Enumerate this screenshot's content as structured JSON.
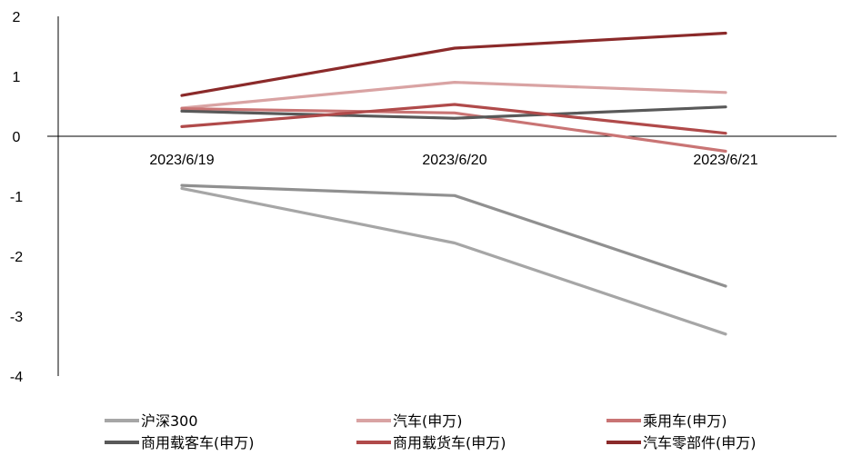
{
  "chart_data": {
    "type": "line",
    "categories": [
      "2023/6/19",
      "2023/6/20",
      "2023/6/21"
    ],
    "ylim": [
      -4,
      2
    ],
    "yticks": [
      2,
      1,
      0,
      -1,
      -2,
      -3,
      -4
    ],
    "grid": false,
    "legend_position": "bottom",
    "series": [
      {
        "name": "沪深300",
        "color": "#a6a6a6",
        "values": [
          -0.87,
          -1.78,
          -3.3
        ]
      },
      {
        "name": "汽车(申万)",
        "color": "#d9a3a3",
        "values": [
          0.47,
          0.9,
          0.73
        ]
      },
      {
        "name": "乘用车(申万)",
        "color": "#c97474",
        "values": [
          0.46,
          0.39,
          -0.25
        ]
      },
      {
        "name": "商用载客车(申万)",
        "color": "#595959",
        "values": [
          0.42,
          0.3,
          0.49
        ]
      },
      {
        "name": "商用载货车(申万)",
        "color": "#b04a4a",
        "values": [
          0.16,
          0.53,
          0.05
        ]
      },
      {
        "name": "汽车零部件(申万)",
        "color": "#8b2a2a",
        "values": [
          0.68,
          1.47,
          1.72
        ]
      },
      {
        "name": "",
        "color": "#909090",
        "values": [
          -0.82,
          -0.99,
          -2.5
        ]
      }
    ]
  }
}
